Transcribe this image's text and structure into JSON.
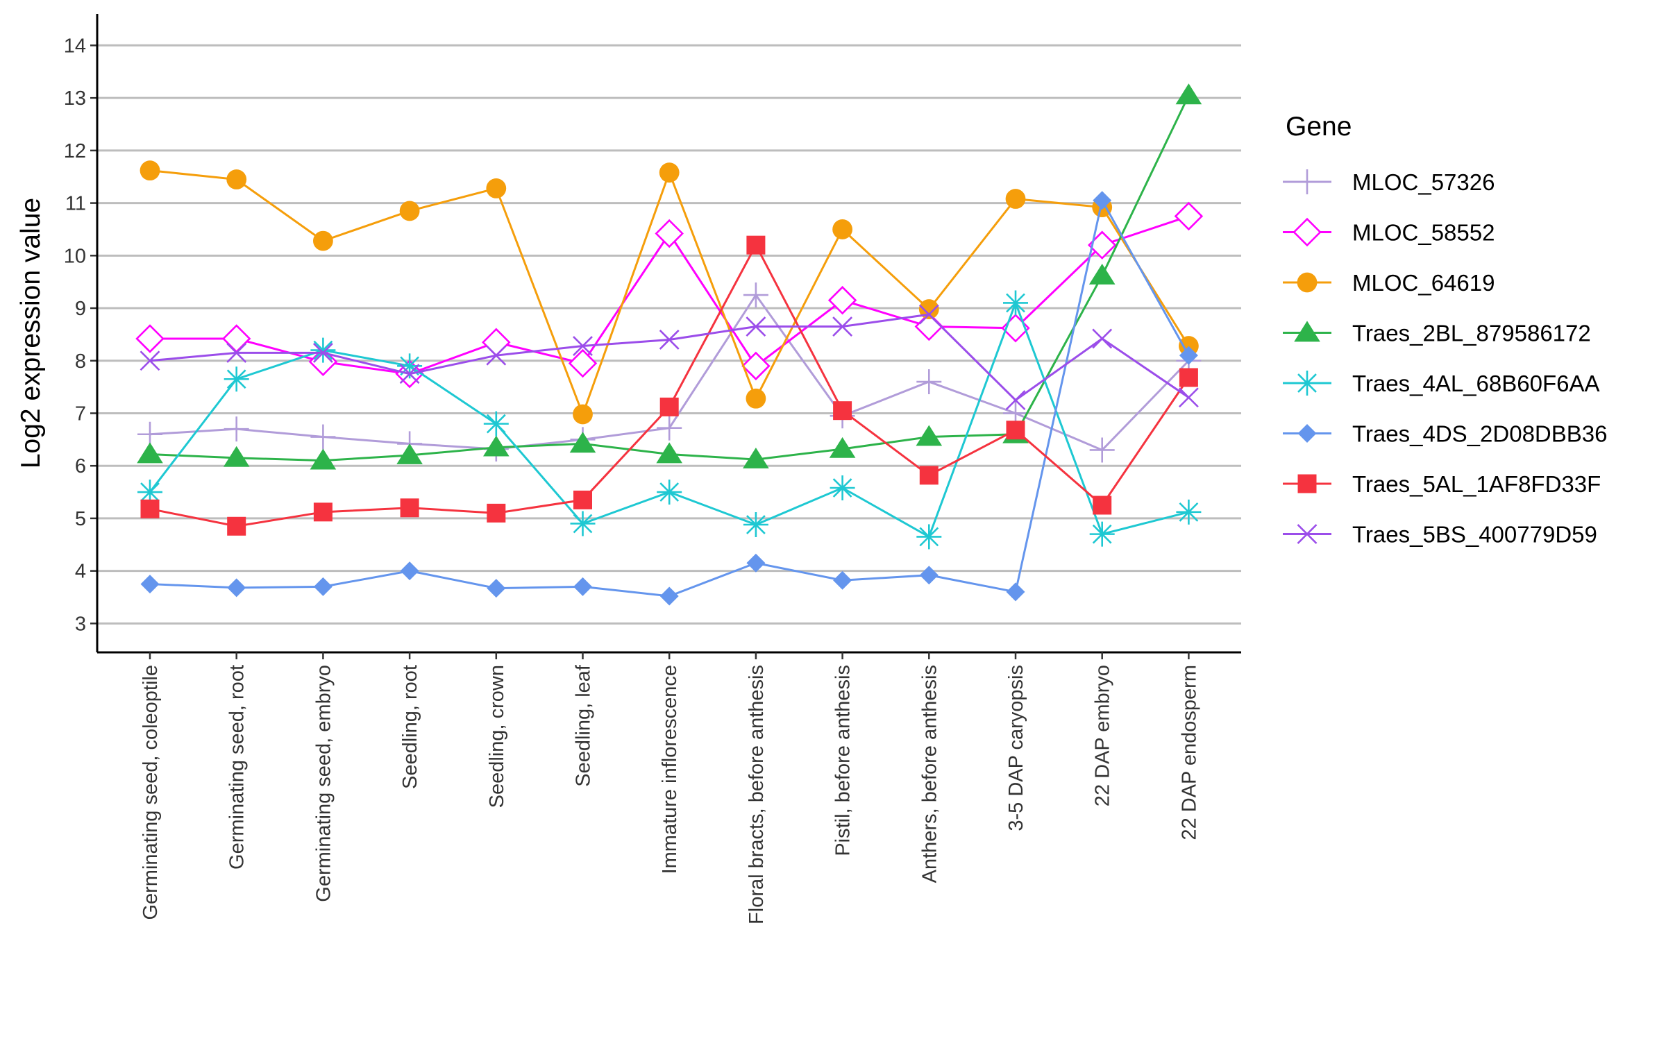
{
  "chart_data": {
    "type": "line",
    "title": "",
    "xlabel": "",
    "ylabel": "Log2 expression value",
    "ylim": [
      2.45,
      14.6
    ],
    "yticks": [
      3,
      4,
      5,
      6,
      7,
      8,
      9,
      10,
      11,
      12,
      13,
      14
    ],
    "grid": "horizontal major lines",
    "legend_position": "right",
    "legend_title": "Gene",
    "categories": [
      "Germinating seed, coleoptile",
      "Germinating seed, root",
      "Germinating seed, embryo",
      "Seedling, root",
      "Seedling, crown",
      "Seedling, leaf",
      "Immature inflorescence",
      "Floral bracts, before anthesis",
      "Pistil, before anthesis",
      "Anthers, before anthesis",
      "3-5 DAP caryopsis",
      "22 DAP embryo",
      "22 DAP endosperm"
    ],
    "series": [
      {
        "name": "MLOC_57326",
        "color": "#b19cd9",
        "marker": "plus",
        "values": [
          6.6,
          6.7,
          6.55,
          6.42,
          6.32,
          6.5,
          6.72,
          9.25,
          6.95,
          7.6,
          7.0,
          6.3,
          8.0
        ]
      },
      {
        "name": "MLOC_58552",
        "color": "#ff00ff",
        "marker": "open-diamond",
        "values": [
          8.42,
          8.42,
          7.98,
          7.75,
          8.35,
          7.95,
          10.42,
          7.9,
          9.15,
          8.65,
          8.62,
          10.2,
          10.75
        ]
      },
      {
        "name": "MLOC_64619",
        "color": "#f59e0b",
        "marker": "filled-circle",
        "values": [
          11.62,
          11.45,
          10.28,
          10.85,
          11.28,
          6.98,
          11.58,
          7.28,
          10.5,
          8.98,
          11.08,
          10.92,
          8.28
        ]
      },
      {
        "name": "Traes_2BL_879586172",
        "color": "#2db34a",
        "marker": "filled-triangle",
        "values": [
          6.22,
          6.15,
          6.1,
          6.2,
          6.35,
          6.42,
          6.22,
          6.12,
          6.32,
          6.55,
          6.6,
          9.62,
          13.05
        ]
      },
      {
        "name": "Traes_4AL_68B60F6AA",
        "color": "#1ec8d2",
        "marker": "asterisk",
        "values": [
          5.5,
          7.65,
          8.2,
          7.9,
          6.8,
          4.9,
          5.5,
          4.88,
          5.58,
          4.65,
          9.1,
          4.7,
          5.12
        ]
      },
      {
        "name": "Traes_4DS_2D08DBB36",
        "color": "#6495ed",
        "marker": "filled-diamond",
        "values": [
          3.75,
          3.68,
          3.7,
          4.0,
          3.67,
          3.7,
          3.52,
          4.15,
          3.82,
          3.92,
          3.6,
          11.05,
          8.1
        ]
      },
      {
        "name": "Traes_5AL_1AF8FD33F",
        "color": "#f5333f",
        "marker": "filled-square",
        "values": [
          5.18,
          4.85,
          5.12,
          5.2,
          5.1,
          5.35,
          7.12,
          10.2,
          7.05,
          5.82,
          6.68,
          5.25,
          7.68
        ]
      },
      {
        "name": "Traes_5BS_400779D59",
        "color": "#9b4dea",
        "marker": "x",
        "values": [
          8.0,
          8.15,
          8.15,
          7.75,
          8.1,
          8.28,
          8.4,
          8.65,
          8.65,
          8.88,
          7.25,
          8.42,
          7.3
        ]
      }
    ]
  }
}
